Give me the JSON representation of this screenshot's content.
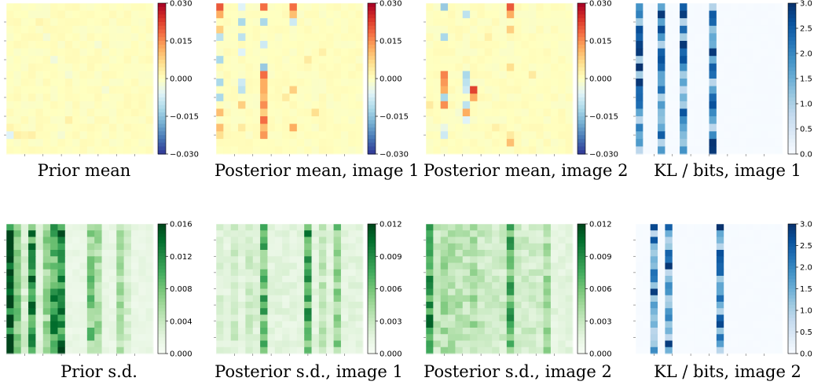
{
  "chart_data": [
    {
      "type": "heatmap",
      "title": "Prior mean",
      "cmap": "RdYlBu_r",
      "vmin": -0.03,
      "vmax": 0.03,
      "colorbar_ticks": [
        "0.030",
        "0.015",
        "0.000",
        "−0.015",
        "−0.030"
      ],
      "grid": [
        20,
        20
      ],
      "highlights": [
        [
          0,
          17,
          -0.006
        ],
        [
          0,
          16,
          0.002
        ],
        [
          1,
          17,
          0.003
        ],
        [
          3,
          17,
          0.003
        ],
        [
          5,
          4,
          -0.002
        ],
        [
          6,
          7,
          -0.003
        ],
        [
          8,
          9,
          -0.002
        ],
        [
          8,
          15,
          0.003
        ],
        [
          4,
          2,
          0.002
        ],
        [
          3,
          12,
          0.001
        ],
        [
          7,
          17,
          -0.002
        ],
        [
          12,
          5,
          -0.002
        ],
        [
          13,
          11,
          -0.002
        ],
        [
          2,
          17,
          0.002
        ]
      ]
    },
    {
      "type": "heatmap",
      "title": "Posterior mean, image 1",
      "cmap": "RdYlBu_r",
      "vmin": -0.03,
      "vmax": 0.03,
      "colorbar_ticks": [
        "0.030",
        "0.015",
        "0.000",
        "−0.015",
        "−0.030"
      ],
      "grid": [
        20,
        20
      ],
      "highlights": [
        [
          0,
          0,
          0.02
        ],
        [
          0,
          1,
          0.012
        ],
        [
          0,
          3,
          0.008
        ],
        [
          0,
          4,
          -0.01
        ],
        [
          0,
          7,
          -0.012
        ],
        [
          0,
          10,
          -0.012
        ],
        [
          0,
          12,
          -0.012
        ],
        [
          0,
          14,
          0.01
        ],
        [
          0,
          16,
          0.01
        ],
        [
          0,
          17,
          0.006
        ],
        [
          3,
          0,
          -0.006
        ],
        [
          3,
          2,
          -0.012
        ],
        [
          3,
          4,
          -0.01
        ],
        [
          3,
          6,
          -0.006
        ],
        [
          3,
          10,
          -0.008
        ],
        [
          3,
          11,
          -0.01
        ],
        [
          3,
          13,
          0.008
        ],
        [
          3,
          16,
          0.004
        ],
        [
          6,
          0,
          0.018
        ],
        [
          6,
          2,
          -0.012
        ],
        [
          6,
          5,
          -0.008
        ],
        [
          6,
          8,
          -0.014
        ],
        [
          6,
          9,
          0.018
        ],
        [
          6,
          10,
          0.012
        ],
        [
          6,
          11,
          0.012
        ],
        [
          6,
          12,
          0.01
        ],
        [
          6,
          13,
          0.015
        ],
        [
          6,
          14,
          0.008
        ],
        [
          6,
          15,
          0.018
        ],
        [
          6,
          16,
          0.01
        ],
        [
          6,
          17,
          0.014
        ],
        [
          10,
          0,
          0.018
        ],
        [
          10,
          1,
          0.01
        ],
        [
          10,
          2,
          -0.008
        ],
        [
          10,
          11,
          0.008
        ],
        [
          10,
          16,
          0.012
        ],
        [
          9,
          12,
          0.004
        ],
        [
          12,
          7,
          0.004
        ],
        [
          13,
          14,
          0.006
        ],
        [
          14,
          6,
          0.003
        ]
      ]
    },
    {
      "type": "heatmap",
      "title": "Posterior mean, image 2",
      "cmap": "RdYlBu_r",
      "vmin": -0.03,
      "vmax": 0.03,
      "colorbar_ticks": [
        "0.030",
        "0.015",
        "0.000",
        "−0.015",
        "−0.030"
      ],
      "grid": [
        20,
        20
      ],
      "highlights": [
        [
          2,
          0,
          -0.014
        ],
        [
          2,
          4,
          -0.012
        ],
        [
          2,
          9,
          0.016
        ],
        [
          2,
          10,
          0.014
        ],
        [
          2,
          11,
          0.012
        ],
        [
          2,
          12,
          -0.012
        ],
        [
          2,
          13,
          0.015
        ],
        [
          2,
          16,
          -0.004
        ],
        [
          2,
          17,
          -0.008
        ],
        [
          5,
          1,
          -0.01
        ],
        [
          5,
          9,
          -0.012
        ],
        [
          5,
          10,
          -0.01
        ],
        [
          5,
          11,
          -0.008
        ],
        [
          5,
          13,
          -0.01
        ],
        [
          5,
          14,
          0.012
        ],
        [
          5,
          15,
          -0.006
        ],
        [
          6,
          11,
          0.022
        ],
        [
          6,
          12,
          0.012
        ],
        [
          11,
          0,
          0.02
        ],
        [
          11,
          1,
          0.012
        ],
        [
          11,
          3,
          0.008
        ],
        [
          11,
          8,
          0.006
        ],
        [
          11,
          17,
          0.004
        ],
        [
          11,
          18,
          0.01
        ],
        [
          0,
          13,
          0.004
        ],
        [
          8,
          4,
          0.003
        ],
        [
          14,
          9,
          0.004
        ],
        [
          9,
          16,
          0.003
        ],
        [
          4,
          14,
          -0.002
        ]
      ]
    },
    {
      "type": "heatmap",
      "title": "KL / bits, image 1",
      "cmap": "Blues",
      "vmin": 0,
      "vmax": 3,
      "colorbar_ticks": [
        "3.0",
        "2.5",
        "2.0",
        "1.5",
        "1.0",
        "0.5",
        "0.0"
      ],
      "grid": [
        20,
        20
      ],
      "active_columns": [
        0,
        3,
        6,
        10
      ]
    },
    {
      "type": "heatmap",
      "title": "Prior s.d.",
      "cmap": "Greens",
      "vmin": 0,
      "vmax": 0.016,
      "colorbar_ticks": [
        "0.016",
        "0.012",
        "0.008",
        "0.004",
        "0.000"
      ],
      "grid": [
        20,
        20
      ],
      "column_levels": [
        0.014,
        0.0065,
        0.003,
        0.011,
        0.0025,
        0.006,
        0.01,
        0.012,
        0.0015,
        0.0015,
        0.0015,
        0.007,
        0.006,
        0.0015,
        0.0015,
        0.005,
        0.003,
        0.0015,
        0.0015,
        0.0015
      ]
    },
    {
      "type": "heatmap",
      "title": "Posterior s.d., image 1",
      "cmap": "Greens",
      "vmin": 0,
      "vmax": 0.012,
      "colorbar_ticks": [
        "0.012",
        "0.009",
        "0.006",
        "0.003",
        "0.000"
      ],
      "grid": [
        20,
        20
      ],
      "column_levels": [
        0.002,
        0.0015,
        0.0025,
        0.0015,
        0.0025,
        0.002,
        0.0065,
        0.0015,
        0.0015,
        0.0015,
        0.0015,
        0.0015,
        0.0075,
        0.0015,
        0.003,
        0.0015,
        0.005,
        0.0015,
        0.0015,
        0.0015
      ]
    },
    {
      "type": "heatmap",
      "title": "Posterior s.d., image 2",
      "cmap": "Greens",
      "vmin": 0,
      "vmax": 0.012,
      "colorbar_ticks": [
        "0.012",
        "0.009",
        "0.006",
        "0.003",
        "0.000"
      ],
      "grid": [
        20,
        20
      ],
      "column_levels": [
        0.0085,
        0.003,
        0.004,
        0.0035,
        0.0035,
        0.003,
        0.004,
        0.003,
        0.0025,
        0.0025,
        0.0025,
        0.007,
        0.0025,
        0.0025,
        0.0025,
        0.0025,
        0.004,
        0.0015,
        0.0015,
        0.0015
      ]
    },
    {
      "type": "heatmap",
      "title": "KL / bits, image 2",
      "cmap": "Blues",
      "vmin": 0,
      "vmax": 3,
      "colorbar_ticks": [
        "3.0",
        "2.5",
        "2.0",
        "1.5",
        "1.0",
        "0.5",
        "0.0"
      ],
      "grid": [
        20,
        20
      ],
      "active_columns": [
        2,
        4,
        11
      ]
    }
  ]
}
